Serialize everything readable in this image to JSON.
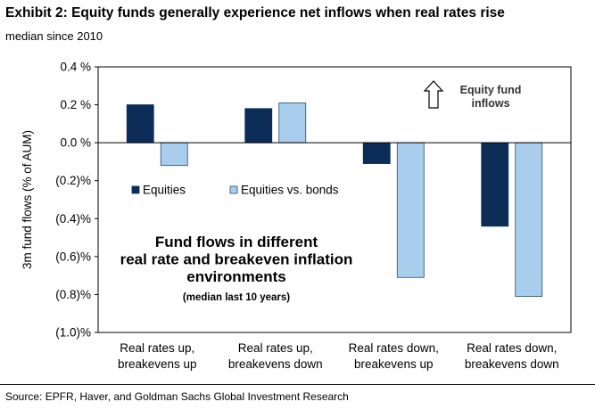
{
  "header": {
    "title": "Exhibit 2: Equity funds generally experience net inflows when real rates rise",
    "subtitle": "median since 2010"
  },
  "footer": {
    "source": "Source: EPFR, Haver, and Goldman Sachs Global Investment Research"
  },
  "chart_data": {
    "type": "bar",
    "categories": [
      [
        "Real rates up,",
        "breakevens up"
      ],
      [
        "Real rates up,",
        "breakevens down"
      ],
      [
        "Real rates down,",
        "breakevens up"
      ],
      [
        "Real rates down,",
        "breakevens down"
      ]
    ],
    "series": [
      {
        "name": "Equities",
        "color": "#0b2d57",
        "values": [
          0.2,
          0.18,
          -0.11,
          -0.44
        ]
      },
      {
        "name": "Equities vs. bonds",
        "color": "#a9cdec",
        "values": [
          -0.12,
          0.21,
          -0.71,
          -0.81
        ]
      }
    ],
    "ylabel": "3m fund flows (% of AUM)",
    "ylim": [
      -1.0,
      0.4
    ],
    "yticks": [
      0.4,
      0.2,
      0.0,
      -0.2,
      -0.4,
      -0.6,
      -0.8,
      -1.0
    ],
    "ytick_labels": [
      "0.4 %",
      "0.2 %",
      "0.0 %",
      "(0.2)%",
      "(0.4)%",
      "(0.6)%",
      "(0.8)%",
      "(1.0)%"
    ],
    "legend_position": "middle-left",
    "grid": false,
    "annotations": {
      "arrow_note": [
        "Equity fund",
        "inflows"
      ],
      "box_title": [
        "Fund flows in different",
        "real rate and breakeven inflation",
        "environments"
      ],
      "box_note": "(median last 10 years)"
    }
  }
}
